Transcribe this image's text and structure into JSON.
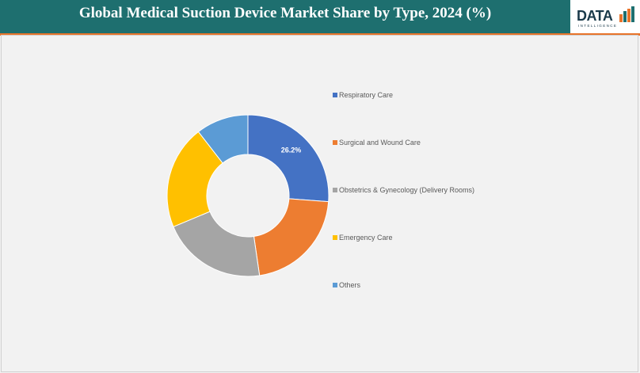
{
  "header": {
    "title": "Global Medical Suction Device Market Share by Type, 2024 (%)",
    "logo_text": "DATA",
    "logo_subtext": "INTELLIGENCE",
    "bar_color": "#1e6f6f",
    "accent_color": "#e8742a"
  },
  "chart_data": {
    "type": "pie",
    "variant": "donut",
    "title": "Global Medical Suction Device Market Share by Type, 2024 (%)",
    "categories": [
      "Respiratory Care",
      "Surgical and Wound Care",
      "Obstetrics & Gynecology (Delivery Rooms)",
      "Emergency Care",
      "Others"
    ],
    "values": [
      26.2,
      21.5,
      21.0,
      20.8,
      10.5
    ],
    "colors": [
      "#4472c4",
      "#ed7d31",
      "#a5a5a5",
      "#ffc000",
      "#5b9bd5"
    ],
    "data_labels": [
      "26.2%",
      "",
      "",
      "",
      ""
    ],
    "legend_position": "right"
  }
}
